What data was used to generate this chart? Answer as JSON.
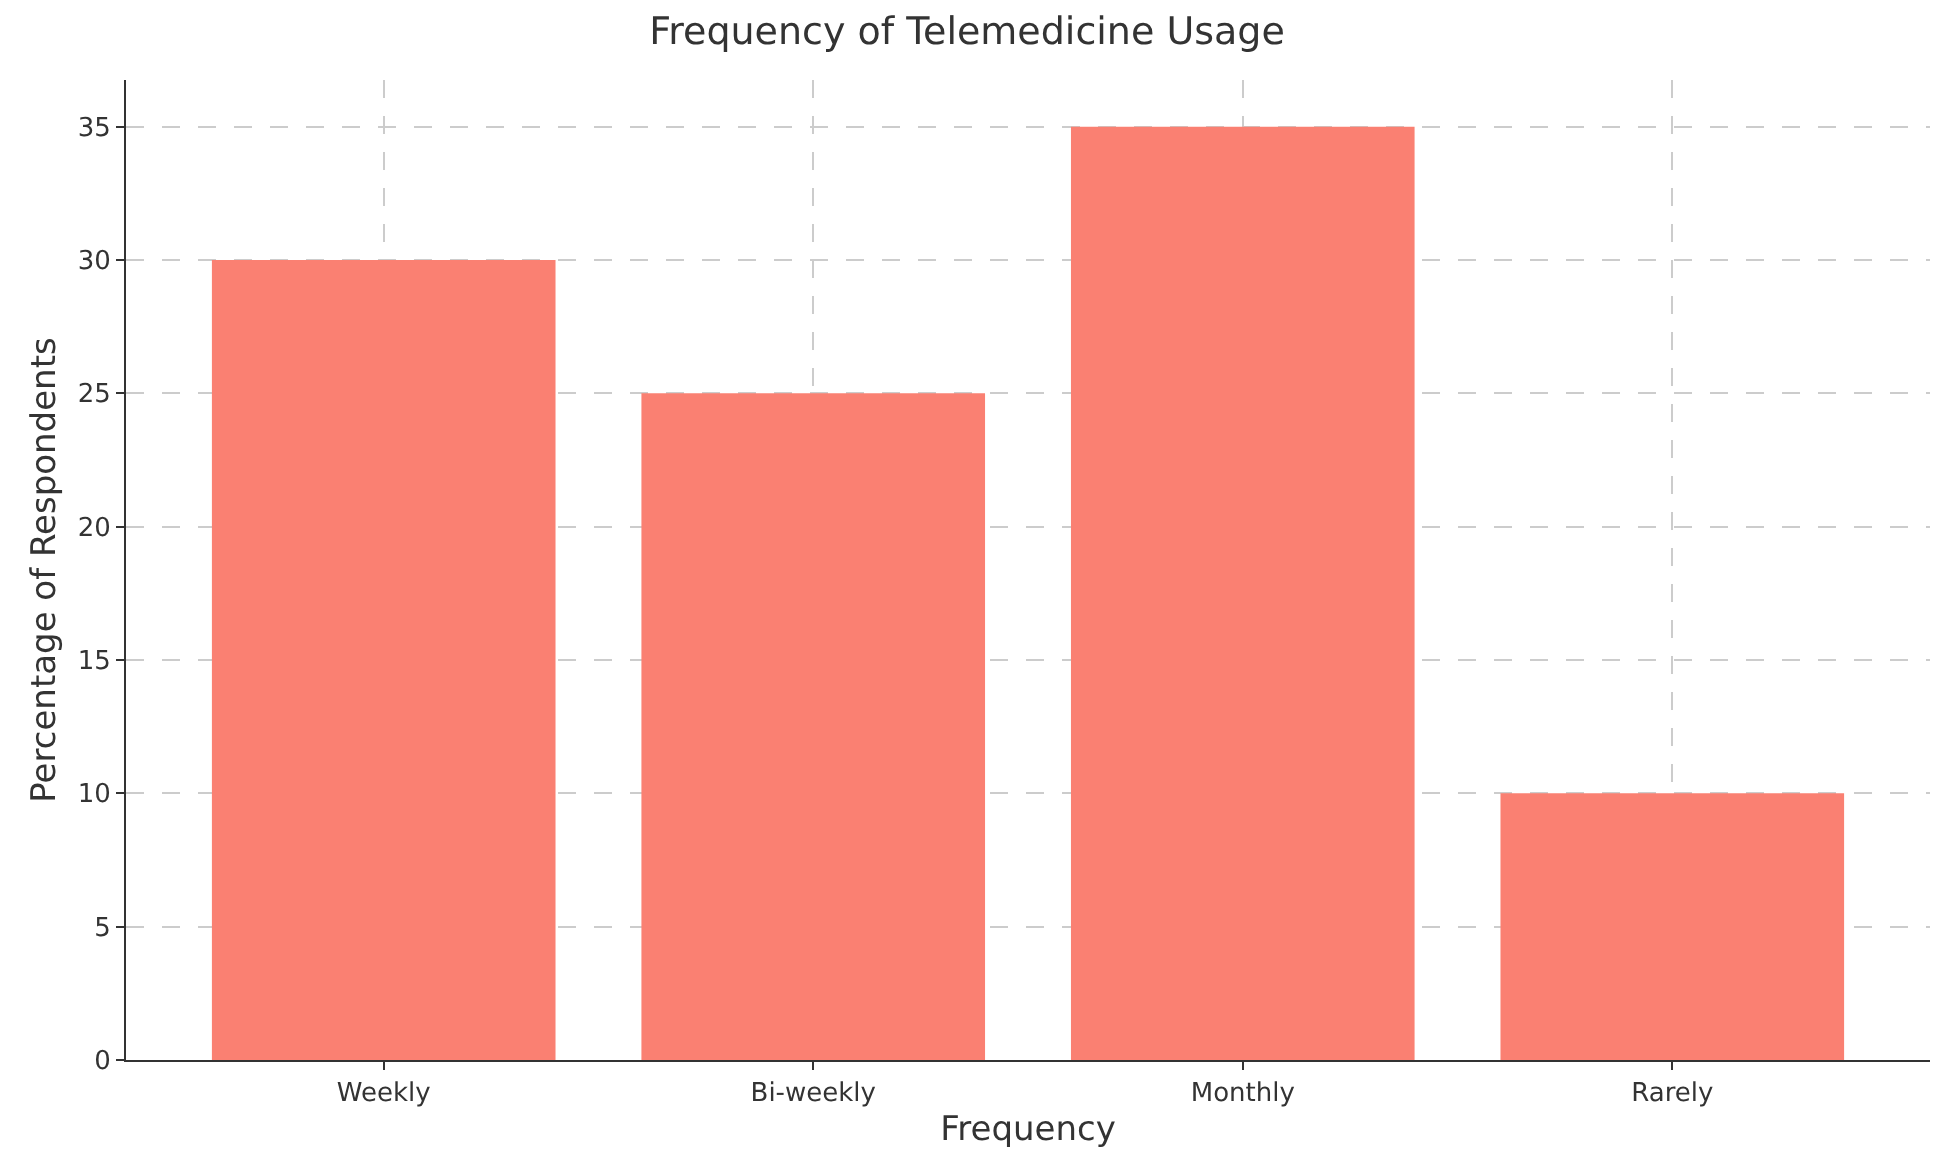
{
  "chart_data": {
    "type": "bar",
    "title": "Frequency of Telemedicine Usage",
    "xlabel": "Frequency",
    "ylabel": "Percentage of Respondents",
    "categories": [
      "Weekly",
      "Bi-weekly",
      "Monthly",
      "Rarely"
    ],
    "values": [
      30,
      25,
      35,
      10
    ],
    "color": "#fa8072",
    "ylim": [
      0,
      36.75
    ],
    "yticks": [
      0,
      5,
      10,
      15,
      20,
      25,
      30,
      35
    ],
    "grid": true
  }
}
